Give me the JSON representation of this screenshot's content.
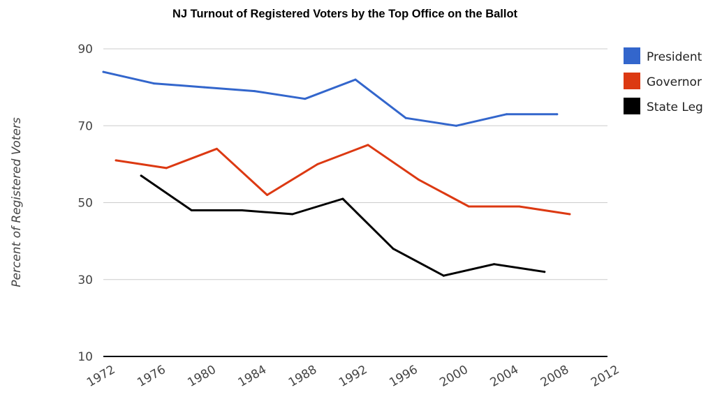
{
  "chart_data": {
    "type": "line",
    "title": "NJ Turnout of Registered Voters by the Top Office on the Ballot",
    "ylabel": "Percent of Registered Voters",
    "xlabel": "",
    "xlim": [
      1972,
      2012
    ],
    "ylim": [
      10,
      90
    ],
    "x_ticks": [
      "1972",
      "1976",
      "1980",
      "1984",
      "1988",
      "1992",
      "1996",
      "2000",
      "2004",
      "2008",
      "2012"
    ],
    "y_ticks": [
      "10",
      "30",
      "50",
      "70",
      "90"
    ],
    "grid": true,
    "legend_position": "right",
    "series": [
      {
        "name": "President",
        "color": "#3366cc",
        "x": [
          1972,
          1976,
          1980,
          1984,
          1988,
          1992,
          1996,
          2000,
          2004,
          2008
        ],
        "y": [
          84,
          81,
          80,
          79,
          77,
          82,
          72,
          70,
          73,
          73
        ]
      },
      {
        "name": "Governor",
        "color": "#dc3912",
        "x": [
          1973,
          1977,
          1981,
          1985,
          1989,
          1993,
          1997,
          2001,
          2005,
          2009
        ],
        "y": [
          61,
          59,
          64,
          52,
          60,
          65,
          56,
          49,
          49,
          47
        ]
      },
      {
        "name": "State Leg",
        "color": "#000000",
        "x": [
          1975,
          1979,
          1983,
          1987,
          1991,
          1995,
          1999,
          2003,
          2007
        ],
        "y": [
          57,
          48,
          48,
          47,
          51,
          38,
          31,
          34,
          32
        ]
      }
    ]
  }
}
